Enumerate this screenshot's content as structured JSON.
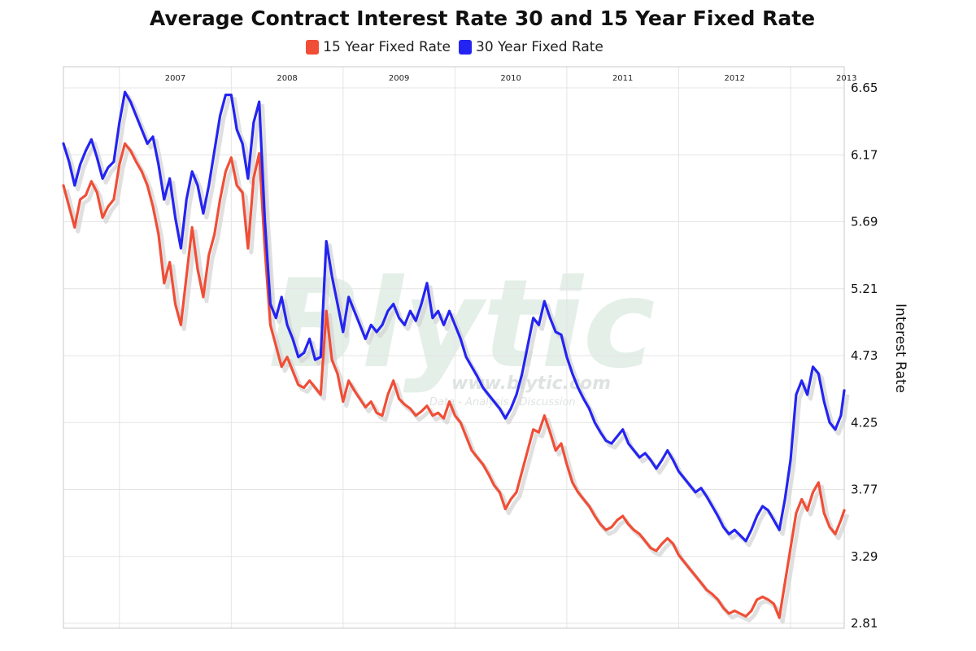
{
  "title": "Average Contract Interest Rate 30 and 15 Year Fixed Rate",
  "watermark": {
    "brand": "Blytic",
    "url": "www.blytic.com",
    "tagline": "Data - Analysis - Discussion"
  },
  "colors": {
    "fifteen": "#f04e37",
    "thirty": "#2424f2",
    "grid": "#e4e4e4",
    "shadow": "#d3d3d3"
  },
  "chart_data": {
    "type": "line",
    "title": "Average Contract Interest Rate 30 and 15 Year Fixed Rate",
    "xlabel": "",
    "ylabel": "Interest Rate",
    "y_axis_side": "right",
    "ylim": [
      2.81,
      6.65
    ],
    "y_ticks": [
      "6.65",
      "6.17",
      "5.69",
      "5.21",
      "4.73",
      "4.25",
      "3.77",
      "3.29",
      "2.81"
    ],
    "x_ticks": [
      "2007",
      "2008",
      "2009",
      "2010",
      "2011",
      "2012",
      "2013"
    ],
    "xlim": [
      2006.5,
      2013.48
    ],
    "grid": true,
    "legend": "top-center",
    "series": [
      {
        "name": "15 Year Fixed Rate",
        "color": "#f04e37",
        "points": [
          [
            2006.5,
            5.95
          ],
          [
            2006.55,
            5.8
          ],
          [
            2006.6,
            5.65
          ],
          [
            2006.65,
            5.85
          ],
          [
            2006.7,
            5.88
          ],
          [
            2006.75,
            5.98
          ],
          [
            2006.8,
            5.9
          ],
          [
            2006.85,
            5.72
          ],
          [
            2006.9,
            5.8
          ],
          [
            2006.95,
            5.85
          ],
          [
            2007.0,
            6.1
          ],
          [
            2007.05,
            6.25
          ],
          [
            2007.1,
            6.2
          ],
          [
            2007.15,
            6.12
          ],
          [
            2007.2,
            6.05
          ],
          [
            2007.25,
            5.95
          ],
          [
            2007.3,
            5.8
          ],
          [
            2007.35,
            5.6
          ],
          [
            2007.4,
            5.25
          ],
          [
            2007.45,
            5.4
          ],
          [
            2007.5,
            5.1
          ],
          [
            2007.55,
            4.95
          ],
          [
            2007.6,
            5.3
          ],
          [
            2007.65,
            5.65
          ],
          [
            2007.7,
            5.35
          ],
          [
            2007.75,
            5.15
          ],
          [
            2007.8,
            5.45
          ],
          [
            2007.85,
            5.6
          ],
          [
            2007.9,
            5.85
          ],
          [
            2007.95,
            6.05
          ],
          [
            2008.0,
            6.15
          ],
          [
            2008.05,
            5.95
          ],
          [
            2008.1,
            5.9
          ],
          [
            2008.15,
            5.5
          ],
          [
            2008.2,
            6.0
          ],
          [
            2008.25,
            6.18
          ],
          [
            2008.3,
            5.5
          ],
          [
            2008.35,
            4.95
          ],
          [
            2008.4,
            4.8
          ],
          [
            2008.45,
            4.65
          ],
          [
            2008.5,
            4.72
          ],
          [
            2008.55,
            4.62
          ],
          [
            2008.6,
            4.52
          ],
          [
            2008.65,
            4.5
          ],
          [
            2008.7,
            4.55
          ],
          [
            2008.75,
            4.5
          ],
          [
            2008.8,
            4.45
          ],
          [
            2008.85,
            5.05
          ],
          [
            2008.9,
            4.7
          ],
          [
            2008.95,
            4.6
          ],
          [
            2009.0,
            4.4
          ],
          [
            2009.05,
            4.55
          ],
          [
            2009.1,
            4.48
          ],
          [
            2009.15,
            4.42
          ],
          [
            2009.2,
            4.36
          ],
          [
            2009.25,
            4.4
          ],
          [
            2009.3,
            4.32
          ],
          [
            2009.35,
            4.3
          ],
          [
            2009.4,
            4.45
          ],
          [
            2009.45,
            4.55
          ],
          [
            2009.5,
            4.42
          ],
          [
            2009.55,
            4.38
          ],
          [
            2009.6,
            4.35
          ],
          [
            2009.65,
            4.3
          ],
          [
            2009.7,
            4.33
          ],
          [
            2009.75,
            4.37
          ],
          [
            2009.8,
            4.3
          ],
          [
            2009.85,
            4.32
          ],
          [
            2009.9,
            4.28
          ],
          [
            2009.95,
            4.4
          ],
          [
            2010.0,
            4.3
          ],
          [
            2010.05,
            4.25
          ],
          [
            2010.1,
            4.15
          ],
          [
            2010.15,
            4.05
          ],
          [
            2010.2,
            4.0
          ],
          [
            2010.25,
            3.95
          ],
          [
            2010.3,
            3.88
          ],
          [
            2010.35,
            3.8
          ],
          [
            2010.4,
            3.75
          ],
          [
            2010.45,
            3.63
          ],
          [
            2010.5,
            3.7
          ],
          [
            2010.55,
            3.75
          ],
          [
            2010.6,
            3.9
          ],
          [
            2010.65,
            4.05
          ],
          [
            2010.7,
            4.2
          ],
          [
            2010.75,
            4.18
          ],
          [
            2010.8,
            4.3
          ],
          [
            2010.85,
            4.18
          ],
          [
            2010.9,
            4.05
          ],
          [
            2010.95,
            4.1
          ],
          [
            2011.0,
            3.95
          ],
          [
            2011.05,
            3.82
          ],
          [
            2011.1,
            3.75
          ],
          [
            2011.15,
            3.7
          ],
          [
            2011.2,
            3.65
          ],
          [
            2011.25,
            3.58
          ],
          [
            2011.3,
            3.52
          ],
          [
            2011.35,
            3.48
          ],
          [
            2011.4,
            3.5
          ],
          [
            2011.45,
            3.55
          ],
          [
            2011.5,
            3.58
          ],
          [
            2011.55,
            3.52
          ],
          [
            2011.6,
            3.48
          ],
          [
            2011.65,
            3.45
          ],
          [
            2011.7,
            3.4
          ],
          [
            2011.75,
            3.35
          ],
          [
            2011.8,
            3.33
          ],
          [
            2011.85,
            3.38
          ],
          [
            2011.9,
            3.42
          ],
          [
            2011.95,
            3.38
          ],
          [
            2012.0,
            3.3
          ],
          [
            2012.05,
            3.25
          ],
          [
            2012.1,
            3.2
          ],
          [
            2012.15,
            3.15
          ],
          [
            2012.2,
            3.1
          ],
          [
            2012.25,
            3.05
          ],
          [
            2012.3,
            3.02
          ],
          [
            2012.35,
            2.98
          ],
          [
            2012.4,
            2.92
          ],
          [
            2012.45,
            2.88
          ],
          [
            2012.5,
            2.9
          ],
          [
            2012.55,
            2.88
          ],
          [
            2012.6,
            2.86
          ],
          [
            2012.65,
            2.9
          ],
          [
            2012.7,
            2.98
          ],
          [
            2012.75,
            3.0
          ],
          [
            2012.8,
            2.98
          ],
          [
            2012.85,
            2.95
          ],
          [
            2012.9,
            2.85
          ],
          [
            2012.95,
            3.1
          ],
          [
            2013.0,
            3.35
          ],
          [
            2013.05,
            3.6
          ],
          [
            2013.1,
            3.7
          ],
          [
            2013.15,
            3.62
          ],
          [
            2013.2,
            3.75
          ],
          [
            2013.25,
            3.82
          ],
          [
            2013.3,
            3.6
          ],
          [
            2013.35,
            3.5
          ],
          [
            2013.4,
            3.45
          ],
          [
            2013.45,
            3.55
          ],
          [
            2013.48,
            3.62
          ]
        ]
      },
      {
        "name": "30 Year Fixed Rate",
        "color": "#2424f2",
        "points": [
          [
            2006.5,
            6.25
          ],
          [
            2006.55,
            6.12
          ],
          [
            2006.6,
            5.95
          ],
          [
            2006.65,
            6.1
          ],
          [
            2006.7,
            6.2
          ],
          [
            2006.75,
            6.28
          ],
          [
            2006.8,
            6.15
          ],
          [
            2006.85,
            6.0
          ],
          [
            2006.9,
            6.08
          ],
          [
            2006.95,
            6.12
          ],
          [
            2007.0,
            6.4
          ],
          [
            2007.05,
            6.62
          ],
          [
            2007.1,
            6.55
          ],
          [
            2007.15,
            6.45
          ],
          [
            2007.2,
            6.35
          ],
          [
            2007.25,
            6.25
          ],
          [
            2007.3,
            6.3
          ],
          [
            2007.35,
            6.1
          ],
          [
            2007.4,
            5.85
          ],
          [
            2007.45,
            6.0
          ],
          [
            2007.5,
            5.72
          ],
          [
            2007.55,
            5.5
          ],
          [
            2007.6,
            5.85
          ],
          [
            2007.65,
            6.05
          ],
          [
            2007.7,
            5.95
          ],
          [
            2007.75,
            5.75
          ],
          [
            2007.8,
            5.95
          ],
          [
            2007.85,
            6.2
          ],
          [
            2007.9,
            6.45
          ],
          [
            2007.95,
            6.6
          ],
          [
            2008.0,
            6.6
          ],
          [
            2008.05,
            6.35
          ],
          [
            2008.1,
            6.25
          ],
          [
            2008.15,
            6.0
          ],
          [
            2008.2,
            6.4
          ],
          [
            2008.25,
            6.55
          ],
          [
            2008.3,
            5.7
          ],
          [
            2008.35,
            5.1
          ],
          [
            2008.4,
            5.0
          ],
          [
            2008.45,
            5.15
          ],
          [
            2008.5,
            4.95
          ],
          [
            2008.55,
            4.85
          ],
          [
            2008.6,
            4.72
          ],
          [
            2008.65,
            4.75
          ],
          [
            2008.7,
            4.85
          ],
          [
            2008.75,
            4.7
          ],
          [
            2008.8,
            4.72
          ],
          [
            2008.85,
            5.55
          ],
          [
            2008.9,
            5.3
          ],
          [
            2008.95,
            5.1
          ],
          [
            2009.0,
            4.9
          ],
          [
            2009.05,
            5.15
          ],
          [
            2009.1,
            5.05
          ],
          [
            2009.15,
            4.95
          ],
          [
            2009.2,
            4.85
          ],
          [
            2009.25,
            4.95
          ],
          [
            2009.3,
            4.9
          ],
          [
            2009.35,
            4.95
          ],
          [
            2009.4,
            5.05
          ],
          [
            2009.45,
            5.1
          ],
          [
            2009.5,
            5.0
          ],
          [
            2009.55,
            4.95
          ],
          [
            2009.6,
            5.05
          ],
          [
            2009.65,
            4.98
          ],
          [
            2009.7,
            5.1
          ],
          [
            2009.75,
            5.25
          ],
          [
            2009.8,
            5.0
          ],
          [
            2009.85,
            5.05
          ],
          [
            2009.9,
            4.95
          ],
          [
            2009.95,
            5.05
          ],
          [
            2010.0,
            4.95
          ],
          [
            2010.05,
            4.85
          ],
          [
            2010.1,
            4.72
          ],
          [
            2010.15,
            4.65
          ],
          [
            2010.2,
            4.58
          ],
          [
            2010.25,
            4.5
          ],
          [
            2010.3,
            4.45
          ],
          [
            2010.35,
            4.4
          ],
          [
            2010.4,
            4.35
          ],
          [
            2010.45,
            4.28
          ],
          [
            2010.5,
            4.35
          ],
          [
            2010.55,
            4.45
          ],
          [
            2010.6,
            4.6
          ],
          [
            2010.65,
            4.8
          ],
          [
            2010.7,
            5.0
          ],
          [
            2010.75,
            4.95
          ],
          [
            2010.8,
            5.12
          ],
          [
            2010.85,
            5.0
          ],
          [
            2010.9,
            4.9
          ],
          [
            2010.95,
            4.88
          ],
          [
            2011.0,
            4.72
          ],
          [
            2011.05,
            4.6
          ],
          [
            2011.1,
            4.5
          ],
          [
            2011.15,
            4.42
          ],
          [
            2011.2,
            4.35
          ],
          [
            2011.25,
            4.25
          ],
          [
            2011.3,
            4.18
          ],
          [
            2011.35,
            4.12
          ],
          [
            2011.4,
            4.1
          ],
          [
            2011.45,
            4.15
          ],
          [
            2011.5,
            4.2
          ],
          [
            2011.55,
            4.1
          ],
          [
            2011.6,
            4.05
          ],
          [
            2011.65,
            4.0
          ],
          [
            2011.7,
            4.03
          ],
          [
            2011.75,
            3.98
          ],
          [
            2011.8,
            3.92
          ],
          [
            2011.85,
            3.98
          ],
          [
            2011.9,
            4.05
          ],
          [
            2011.95,
            3.98
          ],
          [
            2012.0,
            3.9
          ],
          [
            2012.05,
            3.85
          ],
          [
            2012.1,
            3.8
          ],
          [
            2012.15,
            3.75
          ],
          [
            2012.2,
            3.78
          ],
          [
            2012.25,
            3.72
          ],
          [
            2012.3,
            3.65
          ],
          [
            2012.35,
            3.58
          ],
          [
            2012.4,
            3.5
          ],
          [
            2012.45,
            3.45
          ],
          [
            2012.5,
            3.48
          ],
          [
            2012.55,
            3.44
          ],
          [
            2012.6,
            3.4
          ],
          [
            2012.65,
            3.48
          ],
          [
            2012.7,
            3.58
          ],
          [
            2012.75,
            3.65
          ],
          [
            2012.8,
            3.62
          ],
          [
            2012.85,
            3.55
          ],
          [
            2012.9,
            3.48
          ],
          [
            2012.95,
            3.7
          ],
          [
            2013.0,
            3.98
          ],
          [
            2013.05,
            4.45
          ],
          [
            2013.1,
            4.55
          ],
          [
            2013.15,
            4.45
          ],
          [
            2013.2,
            4.65
          ],
          [
            2013.25,
            4.6
          ],
          [
            2013.3,
            4.4
          ],
          [
            2013.35,
            4.25
          ],
          [
            2013.4,
            4.2
          ],
          [
            2013.45,
            4.3
          ],
          [
            2013.48,
            4.48
          ]
        ]
      }
    ]
  }
}
